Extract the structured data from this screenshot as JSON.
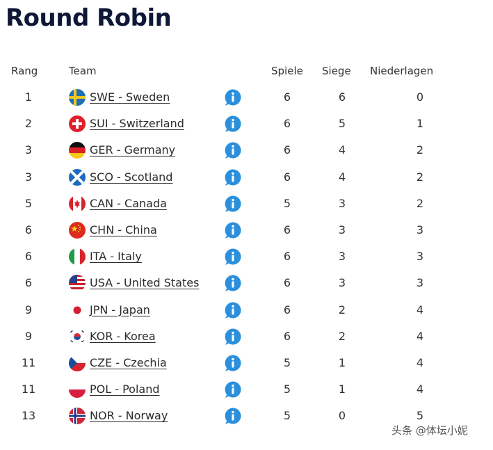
{
  "title": "Round Robin",
  "headers": {
    "rank": "Rang",
    "team": "Team",
    "games": "Spiele",
    "wins": "Siege",
    "losses": "Niederlagen"
  },
  "rows": [
    {
      "rank": "1",
      "team": "SWE - Sweden",
      "flag": "swe-flag-icon",
      "games": "6",
      "wins": "6",
      "losses": "0"
    },
    {
      "rank": "2",
      "team": "SUI - Switzerland",
      "flag": "sui-flag-icon",
      "games": "6",
      "wins": "5",
      "losses": "1"
    },
    {
      "rank": "3",
      "team": "GER - Germany",
      "flag": "ger-flag-icon",
      "games": "6",
      "wins": "4",
      "losses": "2"
    },
    {
      "rank": "3",
      "team": "SCO - Scotland",
      "flag": "sco-flag-icon",
      "games": "6",
      "wins": "4",
      "losses": "2"
    },
    {
      "rank": "5",
      "team": "CAN - Canada",
      "flag": "can-flag-icon",
      "games": "5",
      "wins": "3",
      "losses": "2"
    },
    {
      "rank": "6",
      "team": "CHN - China",
      "flag": "chn-flag-icon",
      "games": "6",
      "wins": "3",
      "losses": "3"
    },
    {
      "rank": "6",
      "team": "ITA - Italy",
      "flag": "ita-flag-icon",
      "games": "6",
      "wins": "3",
      "losses": "3"
    },
    {
      "rank": "6",
      "team": "USA - United States",
      "flag": "usa-flag-icon",
      "games": "6",
      "wins": "3",
      "losses": "3"
    },
    {
      "rank": "9",
      "team": "JPN - Japan",
      "flag": "jpn-flag-icon",
      "games": "6",
      "wins": "2",
      "losses": "4"
    },
    {
      "rank": "9",
      "team": "KOR - Korea",
      "flag": "kor-flag-icon",
      "games": "6",
      "wins": "2",
      "losses": "4"
    },
    {
      "rank": "11",
      "team": "CZE - Czechia",
      "flag": "cze-flag-icon",
      "games": "5",
      "wins": "1",
      "losses": "4"
    },
    {
      "rank": "11",
      "team": "POL - Poland",
      "flag": "pol-flag-icon",
      "games": "5",
      "wins": "1",
      "losses": "4"
    },
    {
      "rank": "13",
      "team": "NOR - Norway",
      "flag": "nor-flag-icon",
      "games": "5",
      "wins": "0",
      "losses": "5"
    }
  ],
  "info_icon": "info-icon",
  "colors": {
    "title": "#0f1836",
    "info": "#2a8fdc"
  },
  "watermark": "头条 @体坛小妮"
}
